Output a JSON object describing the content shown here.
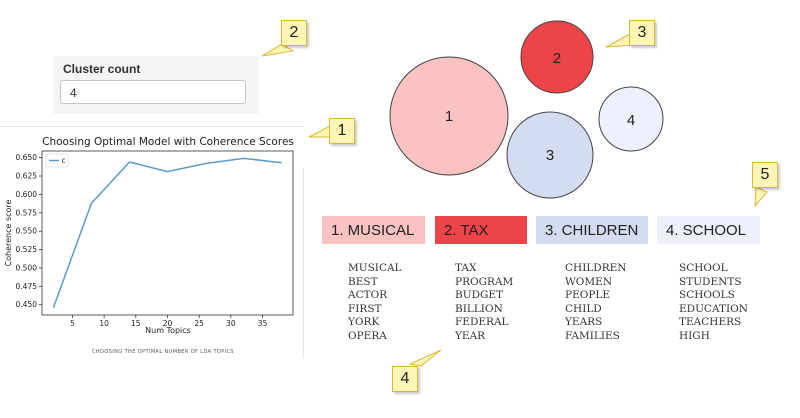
{
  "cluster_control": {
    "label": "Cluster count",
    "value": "4"
  },
  "callouts": [
    "1",
    "2",
    "3",
    "4",
    "5"
  ],
  "clusters": [
    {
      "id": "1",
      "fill": "#fbc2c2",
      "stroke": "#444444"
    },
    {
      "id": "2",
      "fill": "#ec4448",
      "stroke": "#444444"
    },
    {
      "id": "3",
      "fill": "#d4dcef",
      "stroke": "#444444"
    },
    {
      "id": "4",
      "fill": "#eef1fb",
      "stroke": "#444444"
    }
  ],
  "topics": [
    {
      "label": "1. MUSICAL",
      "color": "#fbc2c2",
      "words": [
        "MUSICAL",
        "BEST",
        "ACTOR",
        "FIRST",
        "YORK",
        "OPERA"
      ]
    },
    {
      "label": "2. TAX",
      "color": "#ec4448",
      "words": [
        "TAX",
        "PROGRAM",
        "BUDGET",
        "BILLION",
        "FEDERAL",
        "YEAR"
      ]
    },
    {
      "label": "3. CHILDREN",
      "color": "#d4dcef",
      "words": [
        "CHILDREN",
        "WOMEN",
        "PEOPLE",
        "CHILD",
        "YEARS",
        "FAMILIES"
      ]
    },
    {
      "label": "4. SCHOOL",
      "color": "#eef1fb",
      "words": [
        "SCHOOL",
        "STUDENTS",
        "SCHOOLS",
        "EDUCATION",
        "TEACHERS",
        "HIGH"
      ]
    }
  ],
  "chart_data": {
    "type": "line",
    "title": "Choosing Optimal Model with Coherence Scores",
    "xlabel": "Num Topics",
    "ylabel": "Coherence score",
    "caption": "CHOOSING THE OPTIMAL NUMBER OF LDA TOPICS",
    "legend": "c",
    "legend_position": "top-left",
    "series": [
      {
        "name": "c",
        "color": "#5b9ac6",
        "x": [
          2,
          8,
          14,
          20,
          26,
          32,
          38
        ],
        "values": [
          0.446,
          0.588,
          0.644,
          0.631,
          0.642,
          0.649,
          0.643
        ]
      }
    ],
    "xticks": [
      5,
      10,
      15,
      20,
      25,
      30,
      35
    ],
    "yticks": [
      0.45,
      0.475,
      0.5,
      0.525,
      0.55,
      0.575,
      0.6,
      0.625,
      0.65
    ],
    "ytick_labels": [
      "0.450",
      "0.475",
      "0.500",
      "0.525",
      "0.550",
      "0.575",
      "0.600",
      "0.625",
      "0.650"
    ],
    "xlim": [
      0.2,
      39.8
    ],
    "ylim": [
      0.436,
      0.659
    ],
    "grid": false
  }
}
